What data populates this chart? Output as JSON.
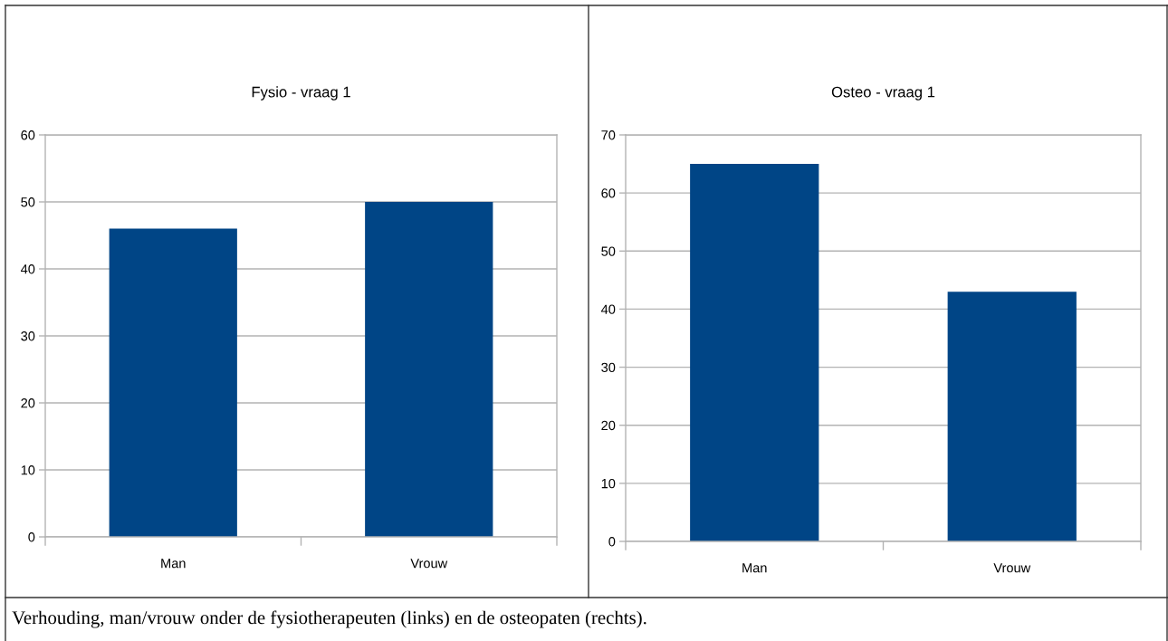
{
  "chart_data": [
    {
      "type": "bar",
      "title": "Fysio - vraag 1",
      "categories": [
        "Man",
        "Vrouw"
      ],
      "values": [
        46,
        50
      ],
      "color": "#004586",
      "ylim": [
        0,
        60
      ],
      "yticks": [
        0,
        10,
        20,
        30,
        40,
        50,
        60
      ],
      "grid": "y"
    },
    {
      "type": "bar",
      "title": "Osteo - vraag 1",
      "categories": [
        "Man",
        "Vrouw"
      ],
      "values": [
        65,
        43
      ],
      "color": "#004586",
      "ylim": [
        0,
        70
      ],
      "yticks": [
        0,
        10,
        20,
        30,
        40,
        50,
        60,
        70
      ],
      "grid": "y"
    },
    {
      "type": "other",
      "annotations": [
        "Verhouding, man/vrouw onder de fysiotherapeuten (links) en de osteopaten (rechts)."
      ]
    }
  ]
}
